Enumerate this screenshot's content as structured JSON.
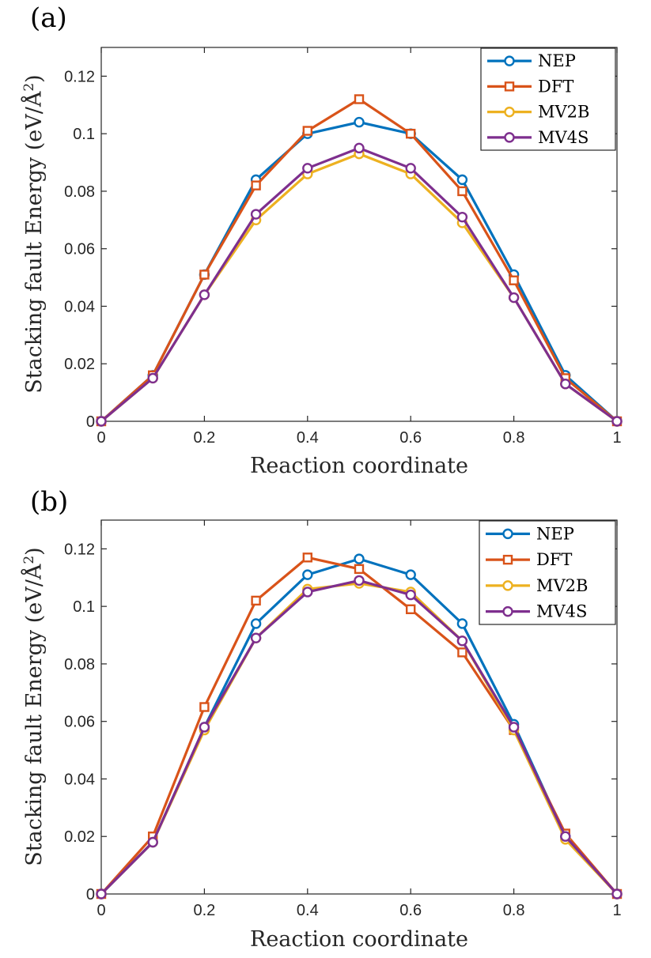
{
  "colors": {
    "NEP": "#0072BD",
    "DFT": "#D95319",
    "MV2B": "#EDB120",
    "MV4S": "#7E2F8E"
  },
  "chart_data": [
    {
      "type": "line",
      "panel_label": "(a)",
      "xlabel": "Reaction coordinate",
      "ylabel": "Stacking fault Energy (eV/Å²)",
      "ylabel_text": "Stacking fault Energy (eV/Å",
      "ylabel_sup": "2",
      "ylabel_close": ")",
      "xlim": [
        0,
        1
      ],
      "ylim": [
        0,
        0.13
      ],
      "xticks": [
        0,
        0.2,
        0.4,
        0.6,
        0.8,
        1
      ],
      "xtick_labels": [
        "0",
        "0.2",
        "0.4",
        "0.6",
        "0.8",
        "1"
      ],
      "yticks": [
        0,
        0.02,
        0.04,
        0.06,
        0.08,
        0.1,
        0.12
      ],
      "ytick_labels": [
        "0",
        "0.02",
        "0.04",
        "0.06",
        "0.08",
        "0.1",
        "0.12"
      ],
      "legend_position": "top-right",
      "x": [
        0,
        0.1,
        0.2,
        0.3,
        0.4,
        0.5,
        0.6,
        0.7,
        0.8,
        0.9,
        1
      ],
      "series": [
        {
          "name": "NEP",
          "marker": "circle",
          "values": [
            0,
            0.016,
            0.051,
            0.084,
            0.1,
            0.104,
            0.1,
            0.084,
            0.051,
            0.016,
            0
          ]
        },
        {
          "name": "DFT",
          "marker": "square",
          "values": [
            0,
            0.016,
            0.051,
            0.082,
            0.101,
            0.112,
            0.1,
            0.08,
            0.049,
            0.015,
            0
          ]
        },
        {
          "name": "MV2B",
          "marker": "circle",
          "values": [
            0,
            0.015,
            0.044,
            0.07,
            0.086,
            0.093,
            0.086,
            0.069,
            0.043,
            0.013,
            0
          ]
        },
        {
          "name": "MV4S",
          "marker": "circle",
          "values": [
            0,
            0.015,
            0.044,
            0.072,
            0.088,
            0.095,
            0.088,
            0.071,
            0.043,
            0.013,
            0
          ]
        }
      ]
    },
    {
      "type": "line",
      "panel_label": "(b)",
      "xlabel": "Reaction coordinate",
      "ylabel": "Stacking fault Energy (eV/Å²)",
      "ylabel_text": "Stacking fault Energy (eV/Å",
      "ylabel_sup": "2",
      "ylabel_close": ")",
      "xlim": [
        0,
        1
      ],
      "ylim": [
        0,
        0.13
      ],
      "xticks": [
        0,
        0.2,
        0.4,
        0.6,
        0.8,
        1
      ],
      "xtick_labels": [
        "0",
        "0.2",
        "0.4",
        "0.6",
        "0.8",
        "1"
      ],
      "yticks": [
        0,
        0.02,
        0.04,
        0.06,
        0.08,
        0.1,
        0.12
      ],
      "ytick_labels": [
        "0",
        "0.02",
        "0.04",
        "0.06",
        "0.08",
        "0.1",
        "0.12"
      ],
      "legend_position": "top-right",
      "x": [
        0,
        0.1,
        0.2,
        0.3,
        0.4,
        0.5,
        0.6,
        0.7,
        0.8,
        0.9,
        1
      ],
      "series": [
        {
          "name": "NEP",
          "marker": "circle",
          "values": [
            0,
            0.018,
            0.058,
            0.094,
            0.111,
            0.1165,
            0.111,
            0.094,
            0.059,
            0.02,
            0
          ]
        },
        {
          "name": "DFT",
          "marker": "square",
          "values": [
            0,
            0.02,
            0.065,
            0.102,
            0.117,
            0.113,
            0.099,
            0.084,
            0.057,
            0.021,
            0
          ]
        },
        {
          "name": "MV2B",
          "marker": "circle",
          "values": [
            0,
            0.018,
            0.057,
            0.089,
            0.106,
            0.108,
            0.105,
            0.088,
            0.057,
            0.019,
            0
          ]
        },
        {
          "name": "MV4S",
          "marker": "circle",
          "values": [
            0,
            0.018,
            0.058,
            0.089,
            0.105,
            0.109,
            0.104,
            0.088,
            0.058,
            0.02,
            0
          ]
        }
      ]
    }
  ]
}
